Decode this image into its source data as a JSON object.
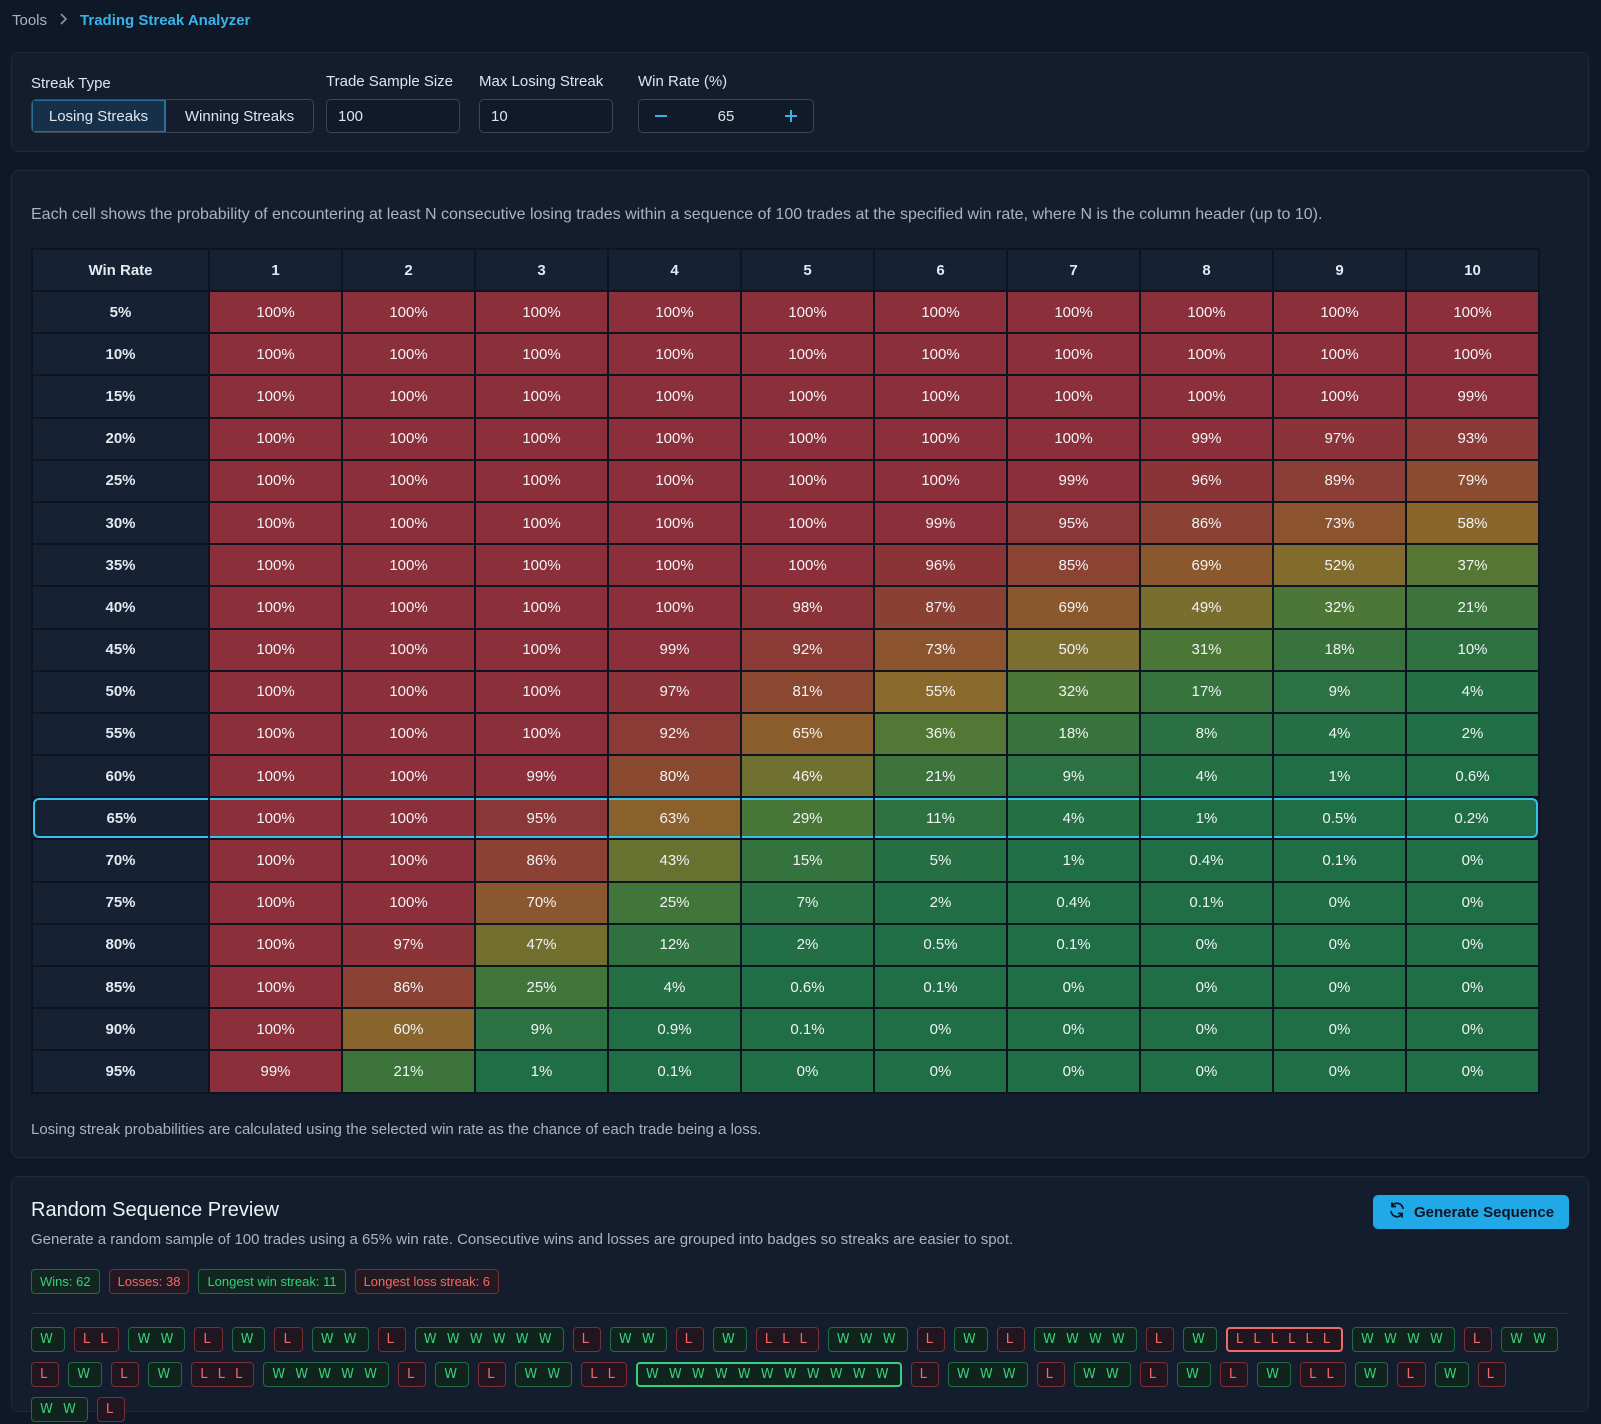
{
  "breadcrumb": {
    "parent": "Tools",
    "current": "Trading Streak Analyzer"
  },
  "controls": {
    "streak_type_label": "Streak Type",
    "streak_options": [
      "Losing Streaks",
      "Winning Streaks"
    ],
    "selected_streak": "Losing Streaks",
    "sample_size_label": "Trade Sample Size",
    "sample_size": "100",
    "max_streak_label": "Max Losing Streak",
    "max_streak": "10",
    "win_rate_label": "Win Rate (%)",
    "win_rate": "65"
  },
  "matrix": {
    "description": "Each cell shows the probability of encountering at least N consecutive losing trades within a sequence of 100 trades at the specified win rate, where N is the column header (up to 10).",
    "row_header": "Win Rate",
    "columns": [
      "1",
      "2",
      "3",
      "4",
      "5",
      "6",
      "7",
      "8",
      "9",
      "10"
    ],
    "selected_row": "65%",
    "rows": [
      {
        "label": "5%",
        "cells": [
          "100%",
          "100%",
          "100%",
          "100%",
          "100%",
          "100%",
          "100%",
          "100%",
          "100%",
          "100%"
        ]
      },
      {
        "label": "10%",
        "cells": [
          "100%",
          "100%",
          "100%",
          "100%",
          "100%",
          "100%",
          "100%",
          "100%",
          "100%",
          "100%"
        ]
      },
      {
        "label": "15%",
        "cells": [
          "100%",
          "100%",
          "100%",
          "100%",
          "100%",
          "100%",
          "100%",
          "100%",
          "100%",
          "99%"
        ]
      },
      {
        "label": "20%",
        "cells": [
          "100%",
          "100%",
          "100%",
          "100%",
          "100%",
          "100%",
          "100%",
          "99%",
          "97%",
          "93%"
        ]
      },
      {
        "label": "25%",
        "cells": [
          "100%",
          "100%",
          "100%",
          "100%",
          "100%",
          "100%",
          "99%",
          "96%",
          "89%",
          "79%"
        ]
      },
      {
        "label": "30%",
        "cells": [
          "100%",
          "100%",
          "100%",
          "100%",
          "100%",
          "99%",
          "95%",
          "86%",
          "73%",
          "58%"
        ]
      },
      {
        "label": "35%",
        "cells": [
          "100%",
          "100%",
          "100%",
          "100%",
          "100%",
          "96%",
          "85%",
          "69%",
          "52%",
          "37%"
        ]
      },
      {
        "label": "40%",
        "cells": [
          "100%",
          "100%",
          "100%",
          "100%",
          "98%",
          "87%",
          "69%",
          "49%",
          "32%",
          "21%"
        ]
      },
      {
        "label": "45%",
        "cells": [
          "100%",
          "100%",
          "100%",
          "99%",
          "92%",
          "73%",
          "50%",
          "31%",
          "18%",
          "10%"
        ]
      },
      {
        "label": "50%",
        "cells": [
          "100%",
          "100%",
          "100%",
          "97%",
          "81%",
          "55%",
          "32%",
          "17%",
          "9%",
          "4%"
        ]
      },
      {
        "label": "55%",
        "cells": [
          "100%",
          "100%",
          "100%",
          "92%",
          "65%",
          "36%",
          "18%",
          "8%",
          "4%",
          "2%"
        ]
      },
      {
        "label": "60%",
        "cells": [
          "100%",
          "100%",
          "99%",
          "80%",
          "46%",
          "21%",
          "9%",
          "4%",
          "1%",
          "0.6%"
        ]
      },
      {
        "label": "65%",
        "cells": [
          "100%",
          "100%",
          "95%",
          "63%",
          "29%",
          "11%",
          "4%",
          "1%",
          "0.5%",
          "0.2%"
        ]
      },
      {
        "label": "70%",
        "cells": [
          "100%",
          "100%",
          "86%",
          "43%",
          "15%",
          "5%",
          "1%",
          "0.4%",
          "0.1%",
          "0%"
        ]
      },
      {
        "label": "75%",
        "cells": [
          "100%",
          "100%",
          "70%",
          "25%",
          "7%",
          "2%",
          "0.4%",
          "0.1%",
          "0%",
          "0%"
        ]
      },
      {
        "label": "80%",
        "cells": [
          "100%",
          "97%",
          "47%",
          "12%",
          "2%",
          "0.5%",
          "0.1%",
          "0%",
          "0%",
          "0%"
        ]
      },
      {
        "label": "85%",
        "cells": [
          "100%",
          "86%",
          "25%",
          "4%",
          "0.6%",
          "0.1%",
          "0%",
          "0%",
          "0%",
          "0%"
        ]
      },
      {
        "label": "90%",
        "cells": [
          "100%",
          "60%",
          "9%",
          "0.9%",
          "0.1%",
          "0%",
          "0%",
          "0%",
          "0%",
          "0%"
        ]
      },
      {
        "label": "95%",
        "cells": [
          "99%",
          "21%",
          "1%",
          "0.1%",
          "0%",
          "0%",
          "0%",
          "0%",
          "0%",
          "0%"
        ]
      }
    ],
    "footnote": "Losing streak probabilities are calculated using the selected win rate as the chance of each trade being a loss."
  },
  "preview": {
    "title": "Random Sequence Preview",
    "description": "Generate a random sample of 100 trades using a 65% win rate. Consecutive wins and losses are grouped into badges so streaks are easier to spot.",
    "generate_label": "Generate Sequence",
    "stats": [
      {
        "kind": "win",
        "text": "Wins: 62"
      },
      {
        "kind": "loss",
        "text": "Losses: 38"
      },
      {
        "kind": "win",
        "text": "Longest win streak: 11"
      },
      {
        "kind": "loss",
        "text": "Longest loss streak: 6"
      }
    ],
    "sequence": [
      {
        "type": "W",
        "text": "W"
      },
      {
        "type": "L",
        "text": "L L"
      },
      {
        "type": "W",
        "text": "W W"
      },
      {
        "type": "L",
        "text": "L"
      },
      {
        "type": "W",
        "text": "W"
      },
      {
        "type": "L",
        "text": "L"
      },
      {
        "type": "W",
        "text": "W W"
      },
      {
        "type": "L",
        "text": "L"
      },
      {
        "type": "W",
        "text": "W W W W W W"
      },
      {
        "type": "L",
        "text": "L"
      },
      {
        "type": "W",
        "text": "W W"
      },
      {
        "type": "L",
        "text": "L"
      },
      {
        "type": "W",
        "text": "W"
      },
      {
        "type": "L",
        "text": "L L L"
      },
      {
        "type": "W",
        "text": "W W W"
      },
      {
        "type": "L",
        "text": "L"
      },
      {
        "type": "W",
        "text": "W"
      },
      {
        "type": "L",
        "text": "L"
      },
      {
        "type": "W",
        "text": "W W W W"
      },
      {
        "type": "L",
        "text": "L"
      },
      {
        "type": "W",
        "text": "W"
      },
      {
        "type": "L",
        "text": "L L L L L L",
        "longest": true
      },
      {
        "type": "W",
        "text": "W W W W"
      },
      {
        "type": "L",
        "text": "L"
      },
      {
        "type": "W",
        "text": "W W"
      },
      {
        "type": "L",
        "text": "L"
      },
      {
        "type": "W",
        "text": "W"
      },
      {
        "type": "L",
        "text": "L"
      },
      {
        "type": "W",
        "text": "W"
      },
      {
        "type": "L",
        "text": "L L L"
      },
      {
        "type": "W",
        "text": "W W W W W"
      },
      {
        "type": "L",
        "text": "L"
      },
      {
        "type": "W",
        "text": "W"
      },
      {
        "type": "L",
        "text": "L"
      },
      {
        "type": "W",
        "text": "W W"
      },
      {
        "type": "L",
        "text": "L L"
      },
      {
        "type": "W",
        "text": "W W W W W W W W W W W",
        "longest": true
      },
      {
        "type": "L",
        "text": "L"
      },
      {
        "type": "W",
        "text": "W W W"
      },
      {
        "type": "L",
        "text": "L"
      },
      {
        "type": "W",
        "text": "W W"
      },
      {
        "type": "L",
        "text": "L"
      },
      {
        "type": "W",
        "text": "W"
      },
      {
        "type": "L",
        "text": "L"
      },
      {
        "type": "W",
        "text": "W"
      },
      {
        "type": "L",
        "text": "L L"
      },
      {
        "type": "W",
        "text": "W"
      },
      {
        "type": "L",
        "text": "L"
      },
      {
        "type": "W",
        "text": "W"
      },
      {
        "type": "L",
        "text": "L"
      },
      {
        "type": "W",
        "text": "W W"
      },
      {
        "type": "L",
        "text": "L"
      }
    ]
  },
  "colors": {
    "accent": "#38b3ea",
    "heat_high": "#8b2f3a",
    "heat_mid": "#8a6a2c",
    "heat_low": "#1f6e46"
  }
}
